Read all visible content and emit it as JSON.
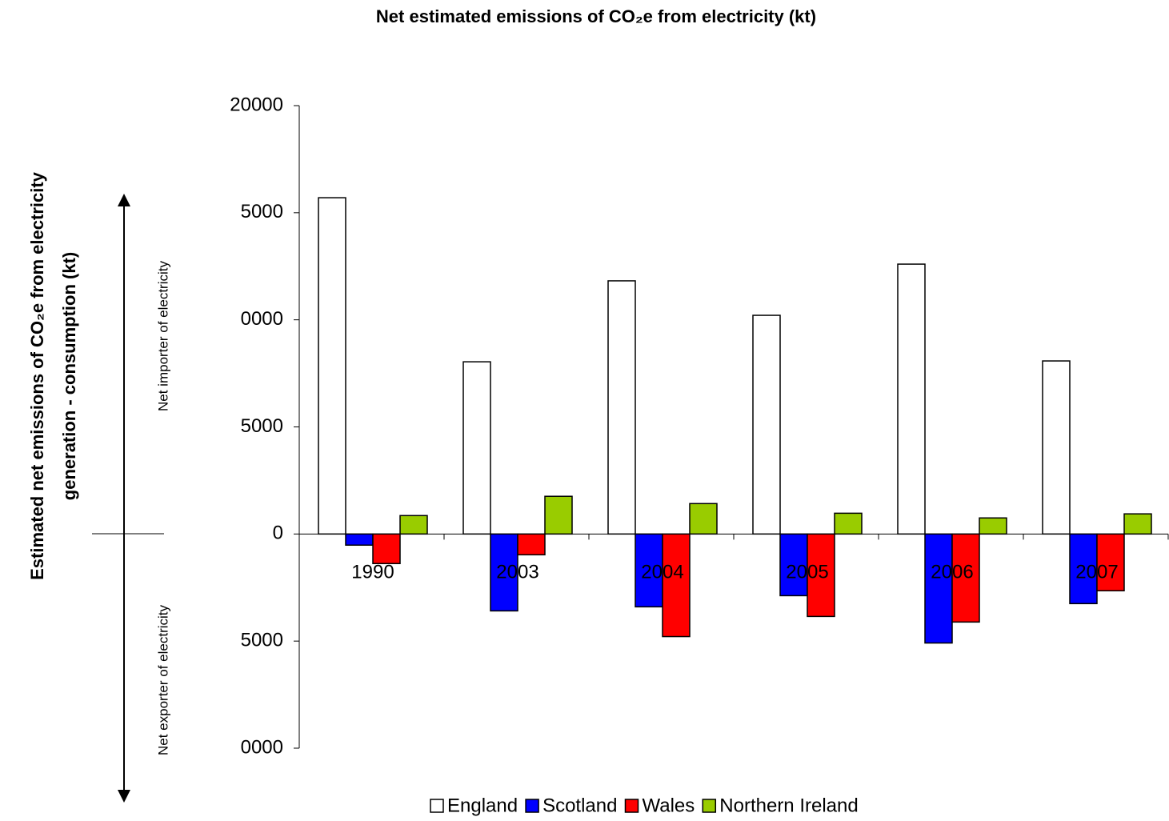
{
  "chart_data": {
    "type": "bar",
    "title": "Net estimated emissions of CO₂e from electricity (kt)",
    "y_label": [
      "Estimated net emissions of CO₂e from electricity",
      "generation - consumption (kt)"
    ],
    "annotations": [
      "Net importer of electricity",
      "Net exporter of electricity"
    ],
    "categories": [
      "1990",
      "2003",
      "2004",
      "2005",
      "2006",
      "2007"
    ],
    "series": [
      {
        "name": "England",
        "color": "#ffffff",
        "values": [
          15700,
          8040,
          11820,
          10210,
          12600,
          8080
        ]
      },
      {
        "name": "Scotland",
        "color": "#0000ff",
        "values": [
          -520,
          -3590,
          -3400,
          -2880,
          -5090,
          -3250
        ]
      },
      {
        "name": "Wales",
        "color": "#ff0000",
        "values": [
          -1380,
          -970,
          -4790,
          -3850,
          -4110,
          -2650
        ]
      },
      {
        "name": "Northern Ireland",
        "color": "#99cc00",
        "values": [
          860,
          1760,
          1420,
          970,
          750,
          940
        ]
      }
    ],
    "ylim": [
      -10000,
      20000
    ],
    "yticks": [
      20000,
      {
        "value": 15000,
        "label": "5000"
      },
      {
        "value": 10000,
        "label": "0000"
      },
      5000,
      0,
      {
        "value": -5000,
        "label": "5000"
      },
      {
        "value": -10000,
        "label": "0000"
      }
    ],
    "grid": false
  }
}
